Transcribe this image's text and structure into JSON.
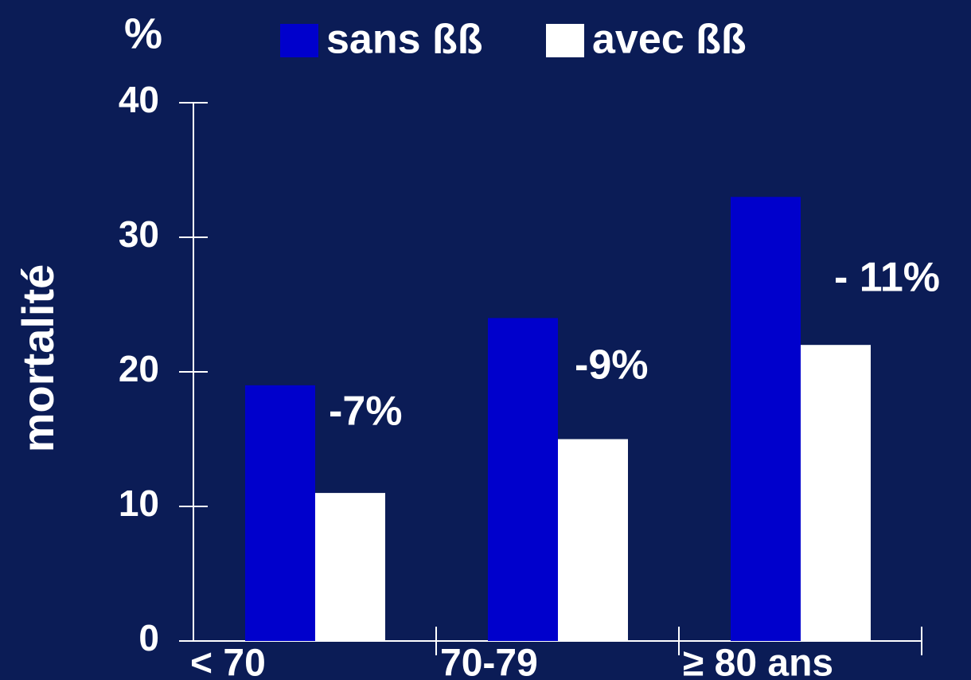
{
  "chart_data": {
    "type": "bar",
    "unit": "%",
    "y_label": "mortalité",
    "categories": [
      "< 70",
      "70-79",
      "≥ 80 ans"
    ],
    "series": [
      {
        "name": "sans ßß",
        "color": "#0000cc",
        "values": [
          19,
          24,
          33
        ]
      },
      {
        "name": "avec ßß",
        "color": "#ffffff",
        "values": [
          11,
          15,
          22
        ]
      }
    ],
    "annotations": [
      "-7%",
      "-9%",
      "- 11%"
    ],
    "ylim": [
      0,
      40
    ],
    "yticks": [
      0,
      10,
      20,
      30,
      40
    ],
    "grid": false
  }
}
